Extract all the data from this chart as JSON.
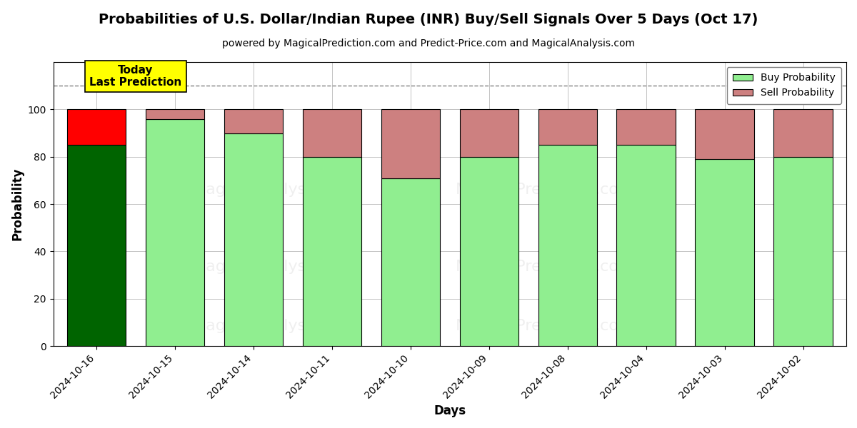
{
  "title": "Probabilities of U.S. Dollar/Indian Rupee (INR) Buy/Sell Signals Over 5 Days (Oct 17)",
  "subtitle": "powered by MagicalPrediction.com and Predict-Price.com and MagicalAnalysis.com",
  "xlabel": "Days",
  "ylabel": "Probability",
  "dates": [
    "2024-10-16",
    "2024-10-15",
    "2024-10-14",
    "2024-10-11",
    "2024-10-10",
    "2024-10-09",
    "2024-10-08",
    "2024-10-04",
    "2024-10-03",
    "2024-10-02"
  ],
  "buy_values": [
    85,
    96,
    90,
    80,
    71,
    80,
    85,
    85,
    79,
    80
  ],
  "sell_values": [
    15,
    4,
    10,
    20,
    29,
    20,
    15,
    15,
    21,
    20
  ],
  "today_bar_index": 0,
  "buy_color_today": "#006400",
  "sell_color_today": "#FF0000",
  "buy_color_normal": "#90EE90",
  "sell_color_normal": "#CD8080",
  "bar_edge_color": "#000000",
  "today_annotation_text": "Today\nLast Prediction",
  "today_annotation_bg": "#FFFF00",
  "dashed_line_y": 110,
  "ylim": [
    0,
    120
  ],
  "yticks": [
    0,
    20,
    40,
    60,
    80,
    100
  ],
  "legend_buy_label": "Buy Probability",
  "legend_sell_label": "Sell Probability",
  "background_color": "#ffffff",
  "grid_color": "#aaaaaa",
  "title_fontsize": 14,
  "subtitle_fontsize": 10,
  "label_fontsize": 12,
  "tick_fontsize": 10,
  "watermark_alpha": 0.12
}
